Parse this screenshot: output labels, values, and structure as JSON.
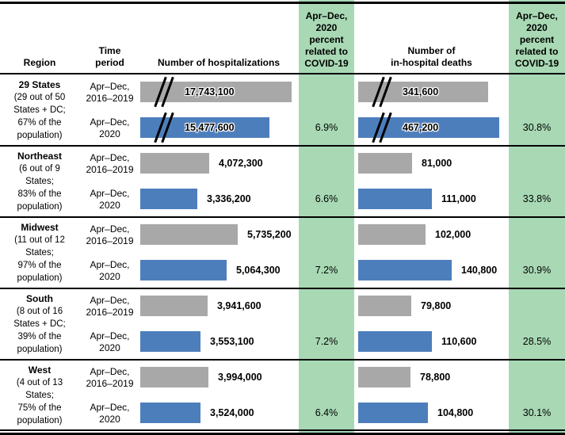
{
  "header": {
    "region": "Region",
    "time_period": "Time\nperiod",
    "hospitalizations": "Number of hospitalizations",
    "covid_pct": "Apr–Dec,\n2020\npercent\nrelated to\nCOVID-19",
    "deaths": "Number of\nin-hospital deaths"
  },
  "time_periods": {
    "baseline": "Apr–Dec,\n2016–2019",
    "pandemic": "Apr–Dec,\n2020"
  },
  "colors": {
    "green_column": "#a8d9b4",
    "bar_2016_2019": "#a8a8a8",
    "bar_2020": "#4d7ebc",
    "rule": "#000000"
  },
  "chart_data": {
    "type": "bar",
    "orientation": "horizontal",
    "grid": false,
    "measures": [
      "Number of hospitalizations",
      "Number of in-hospital deaths"
    ],
    "categories": [
      "29 States",
      "Northeast",
      "Midwest",
      "South",
      "West"
    ],
    "series": [
      {
        "name": "Apr–Dec, 2016–2019",
        "color": "#a8a8a8",
        "hospitalizations": [
          17743100,
          4072300,
          5735200,
          3941600,
          3994000
        ],
        "in_hospital_deaths": [
          341600,
          81000,
          102000,
          79800,
          78800
        ]
      },
      {
        "name": "Apr–Dec, 2020",
        "color": "#4d7ebc",
        "hospitalizations": [
          15477600,
          3336200,
          5064300,
          3553100,
          3524000
        ],
        "in_hospital_deaths": [
          467200,
          111000,
          140800,
          110600,
          104800
        ]
      }
    ],
    "covid_pct_hospitalizations": [
      "6.9%",
      "6.6%",
      "7.2%",
      "7.2%",
      "6.4%"
    ],
    "covid_pct_deaths": [
      "30.8%",
      "33.8%",
      "30.9%",
      "28.5%",
      "30.1%"
    ],
    "sections": [
      {
        "region": "29 States",
        "region_note": "(29 out of 50\nStates + DC;\n67% of the\npopulation)",
        "broken_axis": true,
        "hosp": {
          "baseline": 17743100,
          "baseline_label": "17,743,100",
          "pandemic": 15477600,
          "pandemic_label": "15,477,600",
          "covid_pct": "6.9%"
        },
        "deaths": {
          "baseline": 341600,
          "baseline_label": "341,600",
          "pandemic": 467200,
          "pandemic_label": "467,200",
          "covid_pct": "30.8%"
        }
      },
      {
        "region": "Northeast",
        "region_note": "(6 out of 9\nStates;\n83% of the\npopulation)",
        "broken_axis": false,
        "hosp": {
          "baseline": 4072300,
          "baseline_label": "4,072,300",
          "pandemic": 3336200,
          "pandemic_label": "3,336,200",
          "covid_pct": "6.6%"
        },
        "deaths": {
          "baseline": 81000,
          "baseline_label": "81,000",
          "pandemic": 111000,
          "pandemic_label": "111,000",
          "covid_pct": "33.8%"
        }
      },
      {
        "region": "Midwest",
        "region_note": "(11 out of 12\nStates;\n97% of the\npopulation)",
        "broken_axis": false,
        "hosp": {
          "baseline": 5735200,
          "baseline_label": "5,735,200",
          "pandemic": 5064300,
          "pandemic_label": "5,064,300",
          "covid_pct": "7.2%"
        },
        "deaths": {
          "baseline": 102000,
          "baseline_label": "102,000",
          "pandemic": 140800,
          "pandemic_label": "140,800",
          "covid_pct": "30.9%"
        }
      },
      {
        "region": "South",
        "region_note": "(8 out of 16\nStates + DC;\n39% of the\npopulation)",
        "broken_axis": false,
        "hosp": {
          "baseline": 3941600,
          "baseline_label": "3,941,600",
          "pandemic": 3553100,
          "pandemic_label": "3,553,100",
          "covid_pct": "7.2%"
        },
        "deaths": {
          "baseline": 79800,
          "baseline_label": "79,800",
          "pandemic": 110600,
          "pandemic_label": "110,600",
          "covid_pct": "28.5%"
        }
      },
      {
        "region": "West",
        "region_note": "(4 out of 13\nStates;\n75% of the\npopulation)",
        "broken_axis": false,
        "hosp": {
          "baseline": 3994000,
          "baseline_label": "3,994,000",
          "pandemic": 3524000,
          "pandemic_label": "3,524,000",
          "covid_pct": "6.4%"
        },
        "deaths": {
          "baseline": 78800,
          "baseline_label": "78,800",
          "pandemic": 104800,
          "pandemic_label": "104,800",
          "covid_pct": "30.1%"
        }
      }
    ]
  }
}
